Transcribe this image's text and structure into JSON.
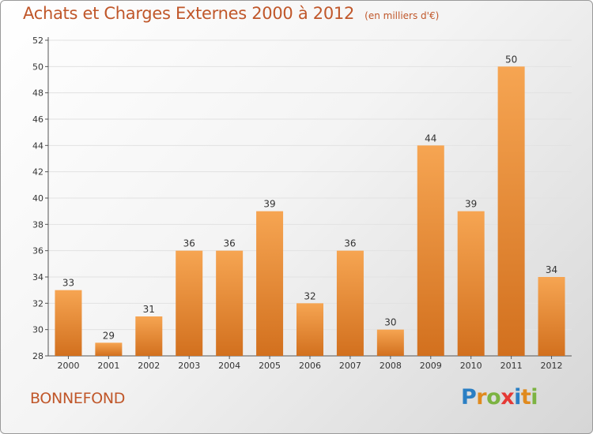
{
  "title": "Achats et Charges Externes 2000 à 2012",
  "subtitle": "(en milliers d'€)",
  "commune": "BONNEFOND",
  "logo": {
    "letters": [
      "P",
      "r",
      "o",
      "x",
      "i",
      "t",
      "i"
    ],
    "colors": [
      "#2b7fc4",
      "#e08a1e",
      "#7cb342",
      "#e53935",
      "#2b7fc4",
      "#e08a1e",
      "#7cb342"
    ]
  },
  "colors": {
    "bar_top": "#f6a552",
    "bar_bottom": "#d2701e",
    "text": "#c0572a",
    "grid": "#e2e2e2"
  },
  "chart_data": {
    "type": "bar",
    "categories": [
      "2000",
      "2001",
      "2002",
      "2003",
      "2004",
      "2005",
      "2006",
      "2007",
      "2008",
      "2009",
      "2010",
      "2011",
      "2012"
    ],
    "values": [
      33,
      29,
      31,
      36,
      36,
      39,
      32,
      36,
      30,
      44,
      39,
      50,
      34
    ],
    "ylim": [
      28,
      52
    ],
    "yticks": [
      28,
      30,
      32,
      34,
      36,
      38,
      40,
      42,
      44,
      46,
      48,
      50,
      52
    ],
    "grid": true,
    "legend": "none"
  }
}
